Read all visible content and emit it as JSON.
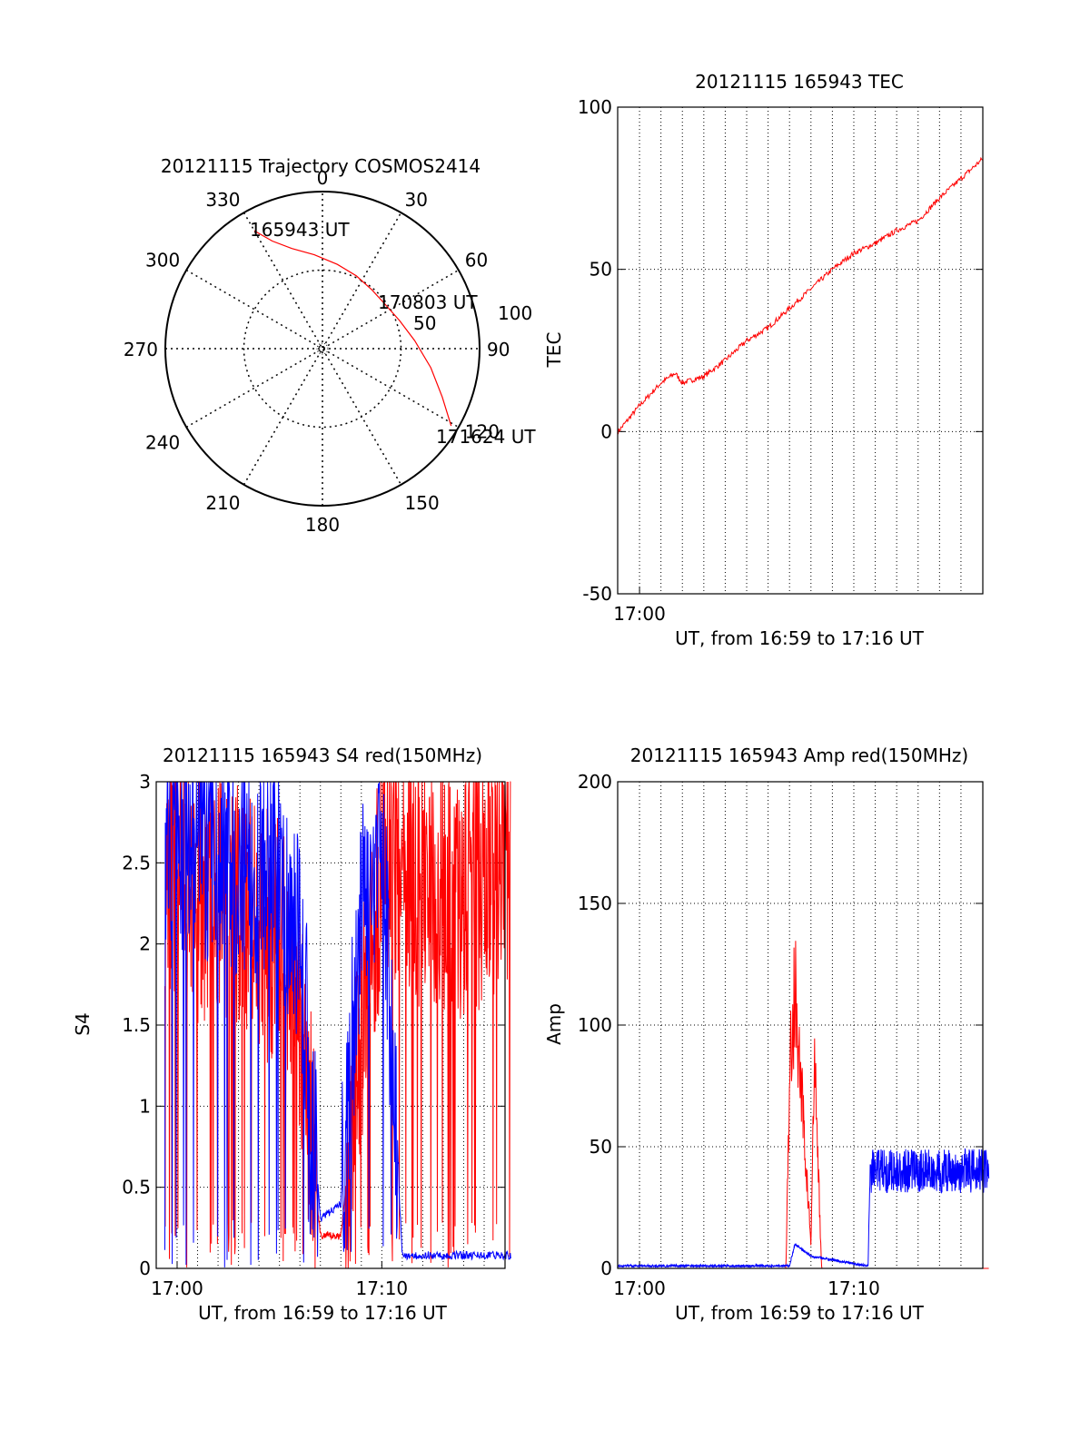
{
  "colors": {
    "red": "#ff0000",
    "blue": "#0000ff",
    "black": "#000000",
    "grid": "#000000"
  },
  "chart_data": [
    {
      "type": "polar",
      "title": "20121115 Trajectory COSMOS2414",
      "angle_labels": [
        "0",
        "30",
        "60",
        "90",
        "120",
        "150",
        "180",
        "210",
        "240",
        "270",
        "300",
        "330"
      ],
      "radius_labels": [
        "50",
        "100"
      ],
      "series": [
        {
          "color": "red",
          "points": [
            {
              "az": 330.0,
              "el": 12.0
            },
            {
              "az": 335.0,
              "el": 22.0
            },
            {
              "az": 343.0,
              "el": 30.0
            },
            {
              "az": 355.0,
              "el": 36.0
            },
            {
              "az": 10.0,
              "el": 41.0
            },
            {
              "az": 25.0,
              "el": 44.0
            },
            {
              "az": 40.0,
              "el": 46.0
            },
            {
              "az": 55.0,
              "el": 46.0
            },
            {
              "az": 70.0,
              "el": 43.0
            },
            {
              "az": 85.0,
              "el": 37.0
            },
            {
              "az": 100.0,
              "el": 27.0
            },
            {
              "az": 112.0,
              "el": 16.0
            },
            {
              "az": 121.0,
              "el": 4.0
            }
          ]
        }
      ],
      "annotations": [
        "165943 UT",
        "170803 UT",
        "171624 UT"
      ]
    },
    {
      "type": "line",
      "title": "20121115 165943 TEC",
      "ylabel": "TEC",
      "xlabel": "UT, from 16:59 to 17:16 UT",
      "ylim": [
        -50,
        100
      ],
      "yticks": [
        "-50",
        "0",
        "50",
        "100"
      ],
      "xlim": [
        16.983,
        17.267
      ],
      "xticks": [
        "17:00"
      ],
      "series": [
        {
          "color": "red",
          "x": [
            "16:59",
            "17:00",
            "17:01",
            "17:01:40",
            "17:02",
            "17:03",
            "17:04",
            "17:05",
            "17:06",
            "17:07",
            "17:08",
            "17:09",
            "17:10",
            "17:11",
            "17:12",
            "17:13",
            "17:14",
            "17:15",
            "17:16"
          ],
          "values": [
            0,
            8,
            15,
            18,
            15,
            17,
            22,
            28,
            32,
            38,
            44,
            50,
            55,
            58,
            62,
            65,
            72,
            78,
            84
          ]
        }
      ]
    },
    {
      "type": "line",
      "title": "20121115 165943 S4 red(150MHz)",
      "ylabel": "S4",
      "xlabel": "UT, from 16:59 to 17:16 UT",
      "ylim": [
        0,
        3
      ],
      "yticks": [
        "0",
        "0.5",
        "1",
        "1.5",
        "2",
        "2.5",
        "3"
      ],
      "xlim": [
        16.983,
        17.267
      ],
      "xticks": [
        "17:00",
        "17:10"
      ],
      "series": [
        {
          "color": "red",
          "note": "noisy",
          "x": [
            "16:59",
            "17:01",
            "17:03",
            "17:05",
            "17:06",
            "17:07",
            "17:08",
            "17:09",
            "17:10",
            "17:12",
            "17:14",
            "17:16"
          ],
          "values": [
            2.6,
            2.3,
            2.2,
            2.0,
            1.6,
            0.2,
            0.2,
            1.5,
            2.5,
            2.4,
            2.3,
            2.5
          ]
        },
        {
          "color": "blue",
          "note": "noisy",
          "x": [
            "16:59",
            "17:01",
            "17:03",
            "17:05",
            "17:06",
            "17:07",
            "17:08",
            "17:09",
            "17:10",
            "17:11",
            "17:16"
          ],
          "values": [
            2.7,
            2.6,
            2.5,
            2.4,
            2.0,
            0.3,
            0.4,
            2.3,
            2.6,
            0.08,
            0.08
          ]
        }
      ]
    },
    {
      "type": "line",
      "title": "20121115 165943 Amp red(150MHz)",
      "ylabel": "Amp",
      "xlabel": "UT, from 16:59 to 17:16 UT",
      "ylim": [
        0,
        200
      ],
      "yticks": [
        "0",
        "50",
        "100",
        "150",
        "200"
      ],
      "xlim": [
        16.983,
        17.267
      ],
      "xticks": [
        "17:00",
        "17:10"
      ],
      "series": [
        {
          "color": "red",
          "x": [
            "16:59",
            "17:06:50",
            "17:07",
            "17:07:15",
            "17:08",
            "17:08:10",
            "17:08:30",
            "17:16"
          ],
          "values": [
            0,
            0,
            80,
            115,
            10,
            85,
            0,
            0
          ]
        },
        {
          "color": "blue",
          "x": [
            "16:59",
            "17:07",
            "17:07:15",
            "17:08",
            "17:10:40",
            "17:10:45",
            "17:16"
          ],
          "values": [
            1,
            1,
            10,
            5,
            1,
            40,
            40
          ]
        }
      ]
    }
  ]
}
